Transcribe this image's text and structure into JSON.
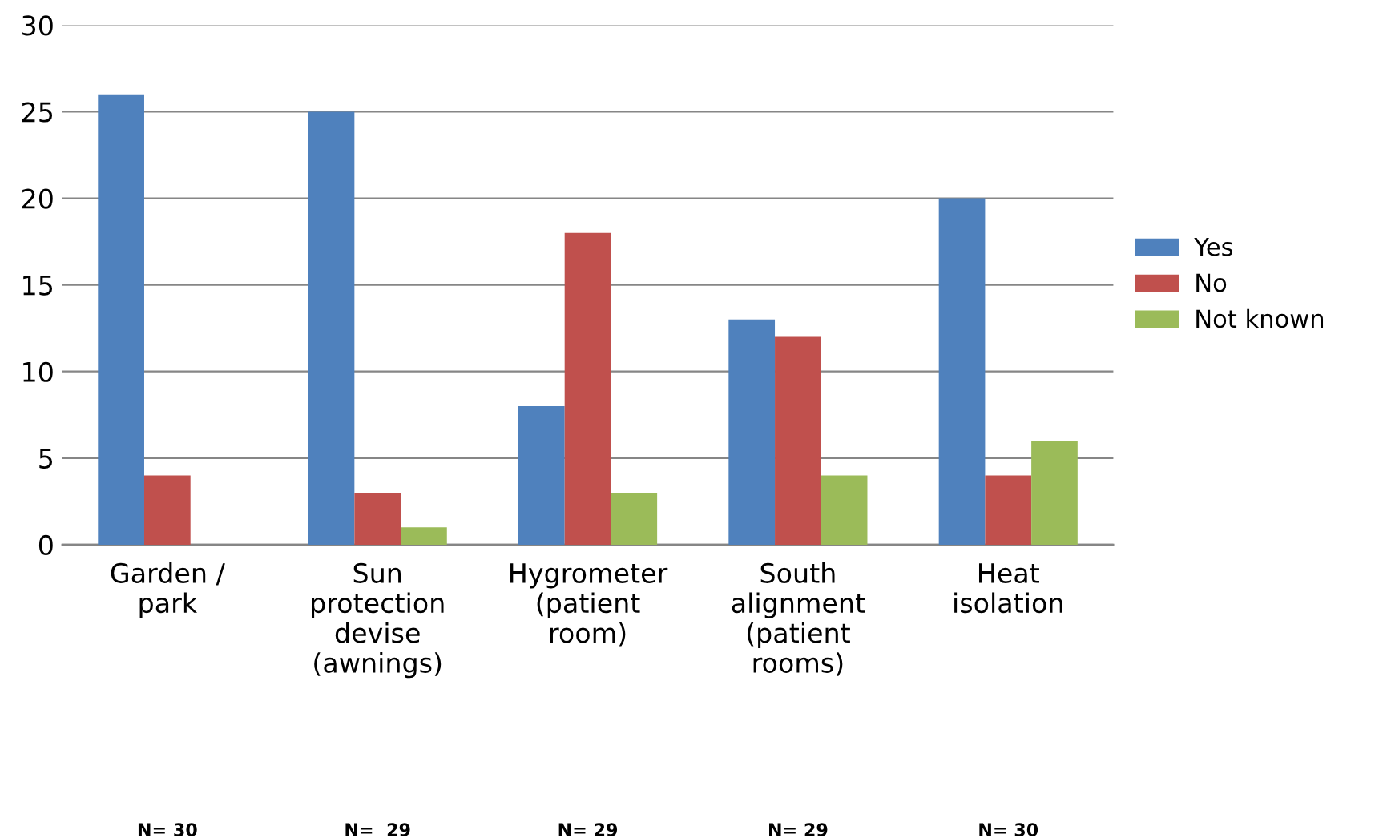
{
  "chart_data": {
    "type": "bar",
    "categories": [
      "Garden /\npark",
      "Sun\nprotection\ndevise\n(awnings)",
      "Hygrometer\n(patient\nroom)",
      "South\nalignment\n(patient\nrooms)",
      "Heat\nisolation"
    ],
    "series": [
      {
        "name": "Yes",
        "color": "#4f81bd",
        "values": [
          26,
          25,
          8,
          13,
          20
        ]
      },
      {
        "name": "No",
        "color": "#c0504d",
        "values": [
          4,
          3,
          18,
          12,
          4
        ]
      },
      {
        "name": "Not known",
        "color": "#9bbb59",
        "values": [
          0,
          1,
          3,
          4,
          6
        ]
      }
    ],
    "ylim": [
      0,
      30
    ],
    "yticks": [
      0,
      5,
      10,
      15,
      20,
      25,
      30
    ],
    "grid": "y",
    "legend": "right",
    "annotations": [
      "N= 30",
      "N=  29",
      "N= 29",
      "N= 29",
      "N= 30"
    ]
  }
}
